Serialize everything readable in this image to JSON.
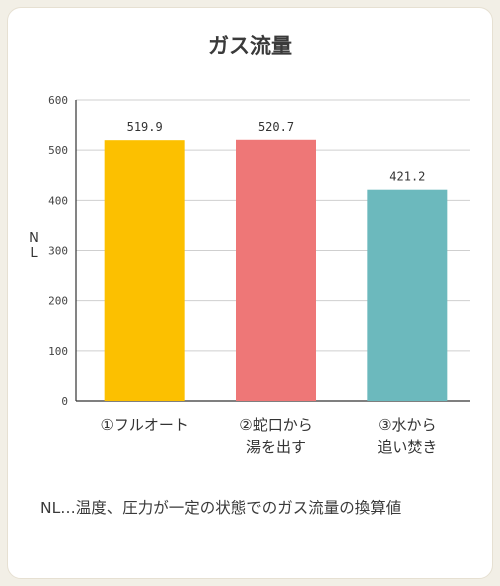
{
  "chart_data": {
    "type": "bar",
    "title": "ガス流量",
    "ylabel": "NL",
    "ylim": [
      0,
      600
    ],
    "yticks": [
      0,
      100,
      200,
      300,
      400,
      500,
      600
    ],
    "categories": [
      [
        "①フルオート"
      ],
      [
        "②蛇口から",
        "湯を出す"
      ],
      [
        "③水から",
        "追い焚き"
      ]
    ],
    "values": [
      519.9,
      520.7,
      421.2
    ],
    "value_labels": [
      "519.9",
      "520.7",
      "421.2"
    ],
    "colors": [
      "#fcc000",
      "#ee7777",
      "#6cb9bd"
    ],
    "grid": true
  },
  "footnote": "NL…温度、圧力が一定の状態でのガス流量の換算値"
}
